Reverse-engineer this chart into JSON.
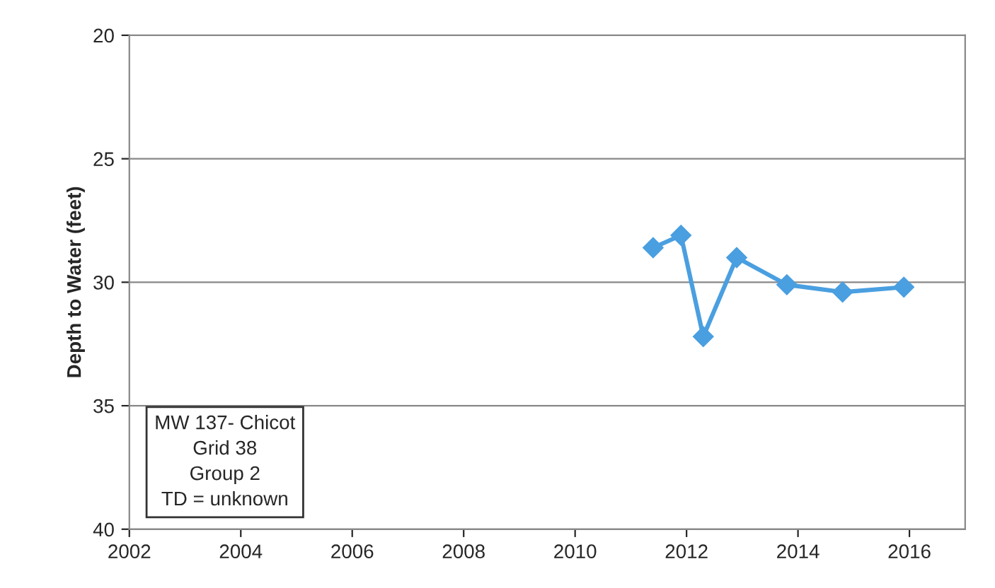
{
  "chart_data": {
    "type": "line",
    "ylabel": "Depth to Water (feet)",
    "x": [
      2011.4,
      2011.9,
      2012.3,
      2012.9,
      2013.8,
      2014.8,
      2015.9
    ],
    "series": [
      {
        "color": "#4a9fe0",
        "values": [
          28.6,
          28.1,
          32.2,
          29.0,
          30.1,
          30.4,
          30.2
        ]
      }
    ],
    "xlim": [
      2002,
      2017
    ],
    "xticks": [
      2002,
      2004,
      2006,
      2008,
      2010,
      2012,
      2014,
      2016
    ],
    "ylim": [
      40,
      20
    ],
    "yticks": [
      20,
      25,
      30,
      35,
      40
    ],
    "grid": "y",
    "marker": "diamond",
    "line_style": "solid",
    "annotations": [
      "MW 137- Chicot\nGrid 38\nGroup 2\nTD = unknown"
    ]
  }
}
